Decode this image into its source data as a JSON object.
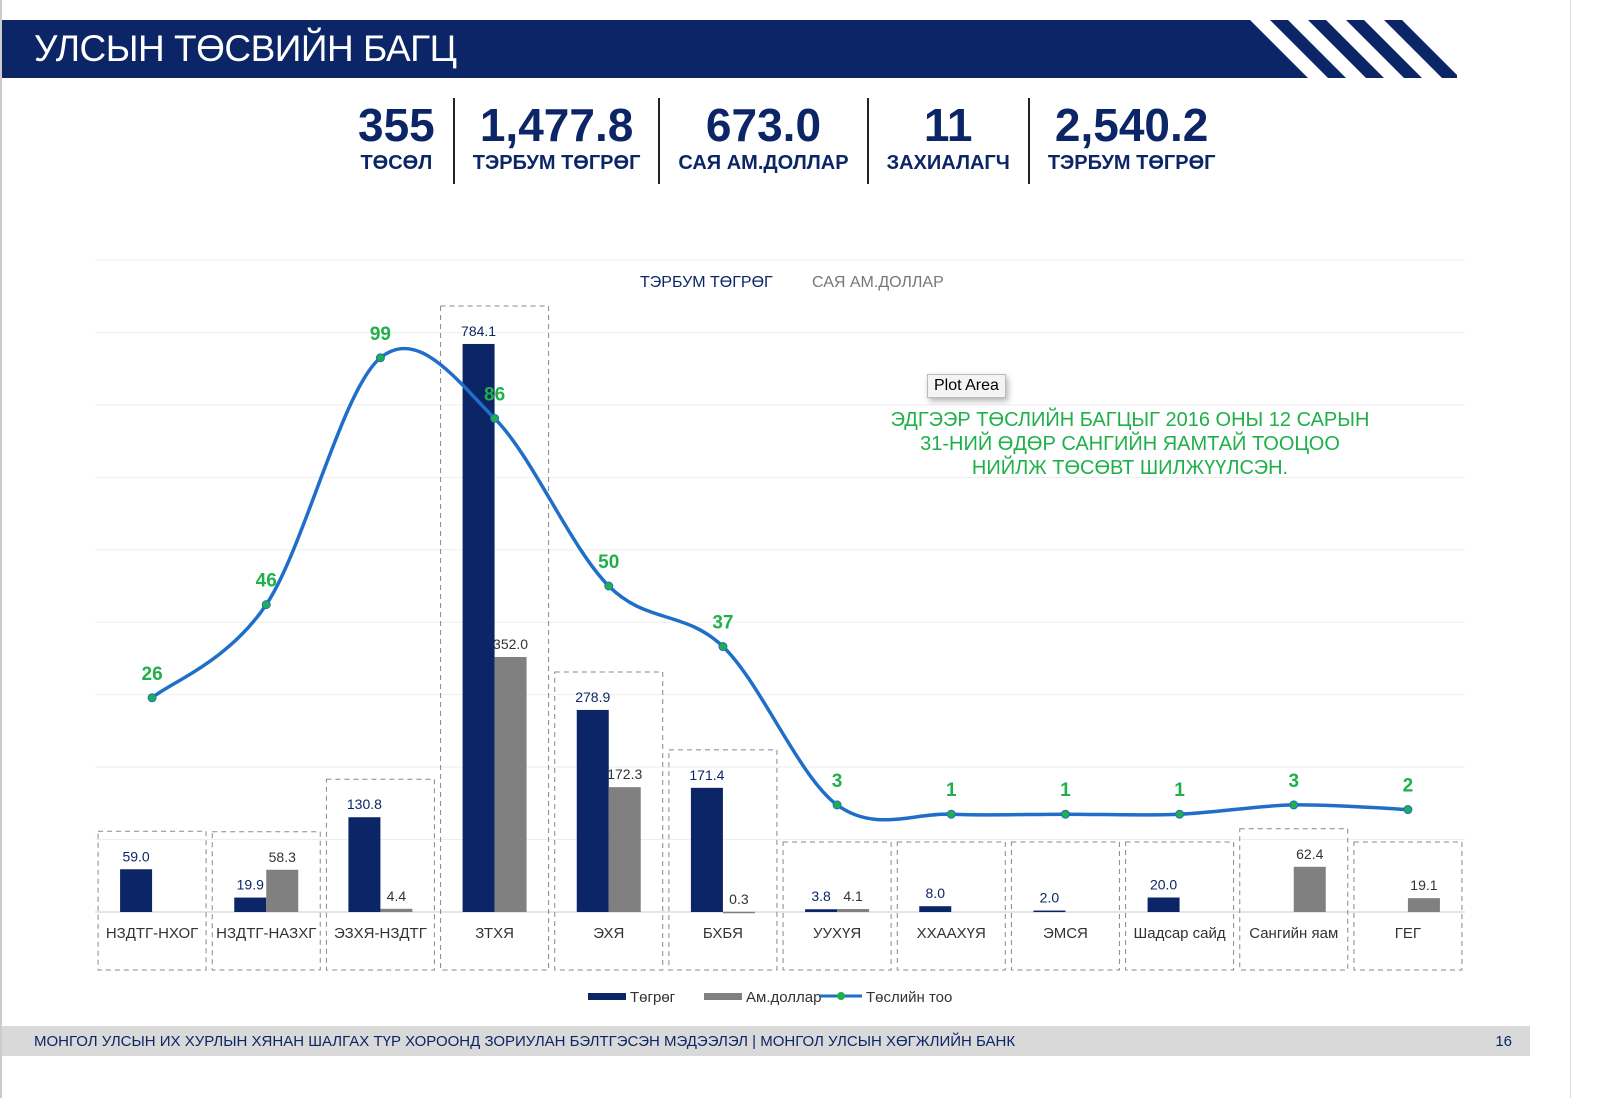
{
  "header": {
    "title": "УЛСЫН ТӨСВИЙН БАГЦ"
  },
  "kpis": [
    {
      "value": "355",
      "label": "ТӨСӨЛ"
    },
    {
      "value": "1,477.8",
      "label": "ТЭРБУМ ТӨГРӨГ"
    },
    {
      "value": "673.0",
      "label": "САЯ АМ.ДОЛЛАР"
    },
    {
      "value": "11",
      "label": "ЗАХИАЛАГЧ"
    },
    {
      "value": "2,540.2",
      "label": "ТЭРБУМ ТӨГРӨГ"
    }
  ],
  "toggle": {
    "active": "ТЭРБУМ ТӨГРӨГ",
    "inactive": "САЯ АМ.ДОЛЛАР"
  },
  "note": {
    "line1": "ЭДГЭЭР ТӨСЛИЙН БАГЦЫГ 2016 ОНЫ 12 САРЫН",
    "line2": "31-НИЙ ӨДӨР  САНГИЙН ЯАМТАЙ ТООЦОО",
    "line3": "НИЙЛЖ ТӨСӨВТ ШИЛЖҮҮЛСЭН."
  },
  "tooltip": "Plot Area",
  "chart_data": {
    "type": "bar",
    "categories": [
      "НЗДТГ-НХОГ",
      "НЗДТГ-НАЗХГ",
      "ЭЗХЯ-НЗДТГ",
      "ЗТХЯ",
      "ЭХЯ",
      "БХБЯ",
      "УУХҮЯ",
      "ХХААХҮЯ",
      "ЭМСЯ",
      "Шадсар сайд",
      "Сангийн яам",
      "ГЕГ"
    ],
    "series": [
      {
        "name": "Төгрөг",
        "type": "bar",
        "axis": "left",
        "color": "#0c2566",
        "values": [
          59.0,
          19.9,
          130.8,
          784.1,
          278.9,
          171.4,
          3.8,
          8.0,
          2.0,
          20.0,
          null,
          null
        ]
      },
      {
        "name": "Ам.доллар",
        "type": "bar",
        "axis": "left",
        "color": "#808080",
        "values": [
          null,
          58.3,
          4.4,
          352.0,
          172.3,
          0.3,
          4.1,
          null,
          null,
          null,
          62.4,
          19.1
        ]
      },
      {
        "name": "Төслийн тоо",
        "type": "line",
        "axis": "right",
        "color": "#1f6fc9",
        "marker_color": "#1fb04a",
        "label_color": "#1fb04a",
        "values": [
          26,
          46,
          99,
          86,
          50,
          37,
          3,
          1,
          1,
          1,
          3,
          2
        ]
      }
    ],
    "ylim_left": [
      0,
      900
    ],
    "ylim_right": [
      -20,
      120
    ],
    "grid": true,
    "legend": "bottom"
  },
  "footer": {
    "text": "МОНГОЛ УЛСЫН ИХ ХУРЛЫН ХЯНАН ШАЛГАХ ТҮР ХОРООНД ЗОРИУЛАН БЭЛТГЭСЭН МЭДЭЭЛЭЛ  |  МОНГОЛ УЛСЫН ХӨГЖЛИЙН БАНК",
    "page": "16"
  }
}
